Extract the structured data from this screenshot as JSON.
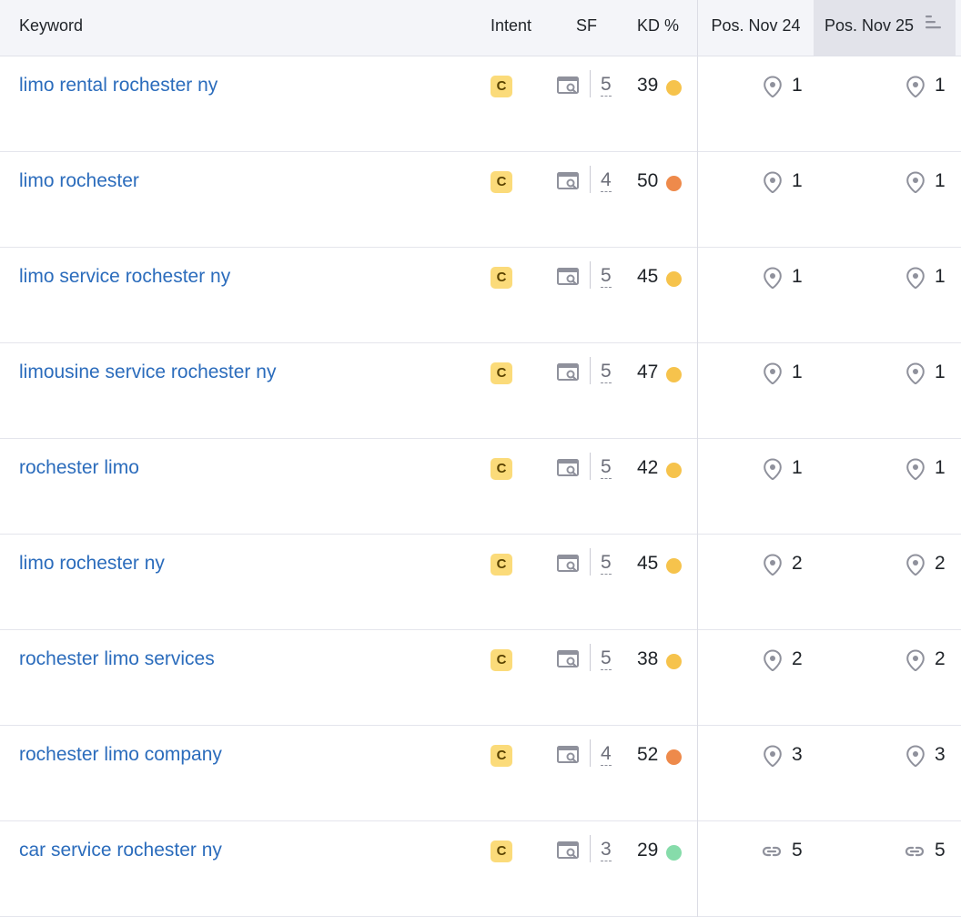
{
  "header": {
    "keyword": "Keyword",
    "intent": "Intent",
    "sf": "SF",
    "kd": "KD %",
    "pos1": "Pos. Nov 24",
    "pos2": "Pos. Nov 25"
  },
  "colors": {
    "kd_yellow": "#f6c34c",
    "kd_orange": "#ee8a4b",
    "kd_green": "#86dcaa",
    "link": "#2b6cbc",
    "intent_badge": "#fbdb7a"
  },
  "rows": [
    {
      "keyword": "limo rental rochester ny",
      "intent": "C",
      "sf": "5",
      "kd": "39",
      "kd_color": "yellow",
      "pos1_icon": "location-pin-icon",
      "pos1": "1",
      "pos2_icon": "location-pin-icon",
      "pos2": "1"
    },
    {
      "keyword": "limo rochester",
      "intent": "C",
      "sf": "4",
      "kd": "50",
      "kd_color": "orange",
      "pos1_icon": "location-pin-icon",
      "pos1": "1",
      "pos2_icon": "location-pin-icon",
      "pos2": "1"
    },
    {
      "keyword": "limo service rochester ny",
      "intent": "C",
      "sf": "5",
      "kd": "45",
      "kd_color": "yellow",
      "pos1_icon": "location-pin-icon",
      "pos1": "1",
      "pos2_icon": "location-pin-icon",
      "pos2": "1"
    },
    {
      "keyword": "limousine service rochester ny",
      "intent": "C",
      "sf": "5",
      "kd": "47",
      "kd_color": "yellow",
      "pos1_icon": "location-pin-icon",
      "pos1": "1",
      "pos2_icon": "location-pin-icon",
      "pos2": "1"
    },
    {
      "keyword": "rochester limo",
      "intent": "C",
      "sf": "5",
      "kd": "42",
      "kd_color": "yellow",
      "pos1_icon": "location-pin-icon",
      "pos1": "1",
      "pos2_icon": "location-pin-icon",
      "pos2": "1"
    },
    {
      "keyword": "limo rochester ny",
      "intent": "C",
      "sf": "5",
      "kd": "45",
      "kd_color": "yellow",
      "pos1_icon": "location-pin-icon",
      "pos1": "2",
      "pos2_icon": "location-pin-icon",
      "pos2": "2"
    },
    {
      "keyword": "rochester limo services",
      "intent": "C",
      "sf": "5",
      "kd": "38",
      "kd_color": "yellow",
      "pos1_icon": "location-pin-icon",
      "pos1": "2",
      "pos2_icon": "location-pin-icon",
      "pos2": "2"
    },
    {
      "keyword": "rochester limo company",
      "intent": "C",
      "sf": "4",
      "kd": "52",
      "kd_color": "orange",
      "pos1_icon": "location-pin-icon",
      "pos1": "3",
      "pos2_icon": "location-pin-icon",
      "pos2": "3"
    },
    {
      "keyword": "car service rochester ny",
      "intent": "C",
      "sf": "3",
      "kd": "29",
      "kd_color": "green",
      "pos1_icon": "link-icon",
      "pos1": "5",
      "pos2_icon": "link-icon",
      "pos2": "5"
    }
  ]
}
